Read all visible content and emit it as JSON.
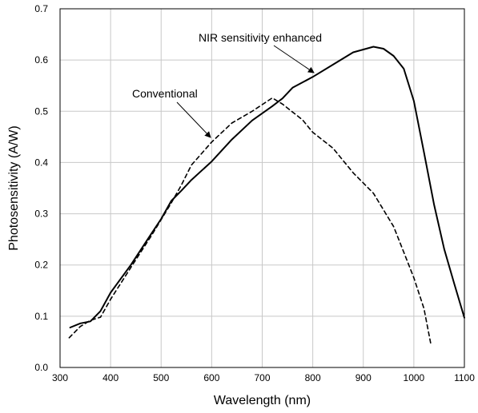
{
  "chart_data": {
    "type": "line",
    "title": "",
    "xlabel": "Wavelength (nm)",
    "ylabel": "Photosensitivity (A/W)",
    "xlim": [
      300,
      1100
    ],
    "ylim": [
      0,
      0.7
    ],
    "x_ticks": [
      "300",
      "400",
      "500",
      "600",
      "700",
      "800",
      "900",
      "1000",
      "1100"
    ],
    "y_ticks": [
      "0.0",
      "0.1",
      "0.2",
      "0.3",
      "0.4",
      "0.5",
      "0.6",
      "0.7"
    ],
    "grid": true,
    "series": [
      {
        "name": "NIR sensitivity enhanced",
        "style": "solid",
        "color": "#000000",
        "points": [
          [
            320,
            0.078
          ],
          [
            340,
            0.086
          ],
          [
            360,
            0.09
          ],
          [
            380,
            0.11
          ],
          [
            400,
            0.146
          ],
          [
            440,
            0.2
          ],
          [
            480,
            0.26
          ],
          [
            500,
            0.29
          ],
          [
            520,
            0.325
          ],
          [
            540,
            0.345
          ],
          [
            560,
            0.366
          ],
          [
            600,
            0.402
          ],
          [
            640,
            0.445
          ],
          [
            680,
            0.482
          ],
          [
            720,
            0.51
          ],
          [
            740,
            0.525
          ],
          [
            760,
            0.546
          ],
          [
            800,
            0.567
          ],
          [
            840,
            0.591
          ],
          [
            880,
            0.615
          ],
          [
            920,
            0.626
          ],
          [
            940,
            0.622
          ],
          [
            960,
            0.608
          ],
          [
            980,
            0.583
          ],
          [
            1000,
            0.52
          ],
          [
            1020,
            0.42
          ],
          [
            1040,
            0.318
          ],
          [
            1060,
            0.231
          ],
          [
            1080,
            0.163
          ],
          [
            1100,
            0.097
          ]
        ]
      },
      {
        "name": "Conventional",
        "style": "dashed",
        "color": "#000000",
        "points": [
          [
            318,
            0.058
          ],
          [
            340,
            0.08
          ],
          [
            360,
            0.092
          ],
          [
            380,
            0.098
          ],
          [
            400,
            0.133
          ],
          [
            440,
            0.195
          ],
          [
            480,
            0.256
          ],
          [
            520,
            0.321
          ],
          [
            540,
            0.356
          ],
          [
            560,
            0.395
          ],
          [
            600,
            0.44
          ],
          [
            640,
            0.477
          ],
          [
            680,
            0.5
          ],
          [
            720,
            0.526
          ],
          [
            740,
            0.514
          ],
          [
            780,
            0.483
          ],
          [
            800,
            0.459
          ],
          [
            840,
            0.428
          ],
          [
            880,
            0.38
          ],
          [
            920,
            0.34
          ],
          [
            960,
            0.275
          ],
          [
            980,
            0.225
          ],
          [
            1000,
            0.175
          ],
          [
            1020,
            0.115
          ],
          [
            1034,
            0.044
          ]
        ]
      }
    ],
    "annotations": [
      {
        "text": "NIR sensitivity enhanced",
        "target_series": "NIR sensitivity enhanced"
      },
      {
        "text": "Conventional",
        "target_series": "Conventional"
      }
    ]
  }
}
